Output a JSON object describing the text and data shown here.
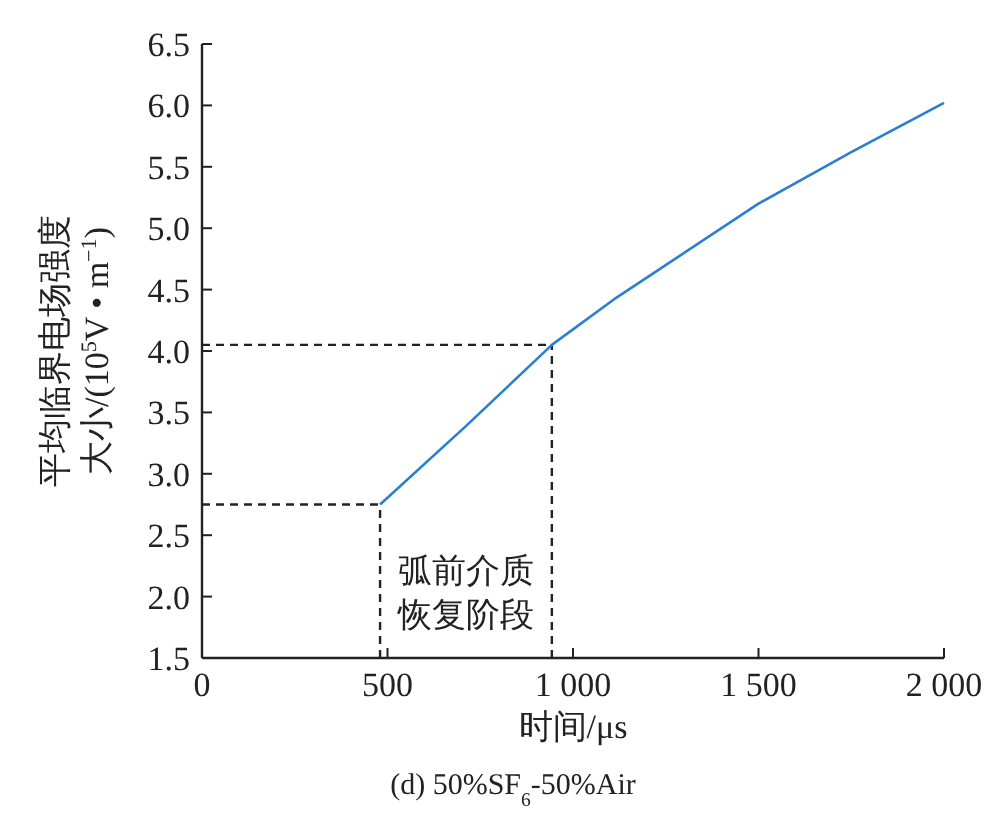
{
  "chart_data": {
    "type": "line",
    "title": "(d)  50%SF$_{6}$-50%Air",
    "xlabel": "时间/μs",
    "ylabel": "平均临界电场强度大小/(10$^{5}$V • m$^{−1}$)",
    "series": [
      {
        "color": "#2b7fd0",
        "x": [
          480,
          712,
          943,
          1110,
          1200,
          1500,
          1750,
          2000
        ],
        "values": [
          2.75,
          3.39,
          4.05,
          4.42,
          4.6,
          5.2,
          5.62,
          6.02
        ]
      }
    ],
    "xlim": [
      0,
      2000
    ],
    "xticks": [
      0,
      500,
      {
        "value": 1000,
        "label": "1 000"
      },
      {
        "value": 1500,
        "label": "1 500"
      },
      {
        "value": 2000,
        "label": "2 000"
      }
    ],
    "ylim": [
      1.5,
      6.5
    ],
    "yticks": [
      1.5,
      {
        "value": 2,
        "label": "2.0"
      },
      2.5,
      {
        "value": 3,
        "label": "3.0"
      },
      3.5,
      {
        "value": 4,
        "label": "4.0"
      },
      4.5,
      {
        "value": 5,
        "label": "5.0"
      },
      5.5,
      {
        "value": 6,
        "label": "6.0"
      },
      6.5
    ],
    "ref_lines": [
      {
        "axis": "y",
        "value": 2.75,
        "line_style": "dashed",
        "color": "#222222"
      },
      {
        "axis": "y",
        "value": 4.05,
        "line_style": "dashed",
        "color": "#222222"
      },
      {
        "axis": "x",
        "value": 480,
        "line_style": "dashed",
        "color": "#222222"
      },
      {
        "axis": "x",
        "value": 943,
        "line_style": "dashed",
        "color": "#222222"
      }
    ],
    "annotations": [
      "弧前介质恢复阶段"
    ],
    "grid": false,
    "marker": "none",
    "line_style": "solid"
  }
}
